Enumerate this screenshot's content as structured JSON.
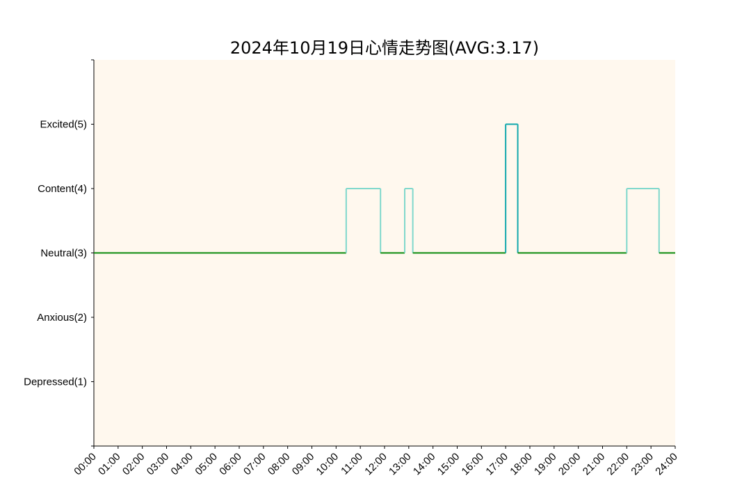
{
  "chart_data": {
    "type": "line",
    "step": true,
    "title": "2024年10月19日心情走势图(AVG:3.17)",
    "xlabel": "",
    "ylabel": "",
    "x_tick_labels": [
      "00:00",
      "01:00",
      "02:00",
      "03:00",
      "04:00",
      "05:00",
      "06:00",
      "07:00",
      "08:00",
      "09:00",
      "10:00",
      "11:00",
      "12:00",
      "13:00",
      "14:00",
      "15:00",
      "16:00",
      "17:00",
      "18:00",
      "19:00",
      "20:00",
      "21:00",
      "22:00",
      "23:00",
      "24:00"
    ],
    "xlim_hours": [
      0,
      24
    ],
    "y_ticks": [
      {
        "value": 1,
        "label": "Depressed(1)"
      },
      {
        "value": 2,
        "label": "Anxious(2)"
      },
      {
        "value": 3,
        "label": "Neutral(3)"
      },
      {
        "value": 4,
        "label": "Content(4)"
      },
      {
        "value": 5,
        "label": "Excited(5)"
      }
    ],
    "ylim": [
      0,
      6
    ],
    "grid": false,
    "background_color": "#fff8ee",
    "level_colors": {
      "3": "#0a8a0a",
      "4": "#7fd8cc",
      "5": "#12a8ad"
    },
    "segments": [
      {
        "start": "00:00",
        "end": "10:25",
        "value": 3
      },
      {
        "start": "10:25",
        "end": "11:50",
        "value": 4
      },
      {
        "start": "11:50",
        "end": "12:50",
        "value": 3
      },
      {
        "start": "12:50",
        "end": "13:10",
        "value": 4
      },
      {
        "start": "13:10",
        "end": "17:00",
        "value": 3
      },
      {
        "start": "17:00",
        "end": "17:30",
        "value": 5
      },
      {
        "start": "17:30",
        "end": "22:00",
        "value": 3
      },
      {
        "start": "22:00",
        "end": "23:20",
        "value": 4
      },
      {
        "start": "23:20",
        "end": "24:00",
        "value": 3
      }
    ]
  }
}
